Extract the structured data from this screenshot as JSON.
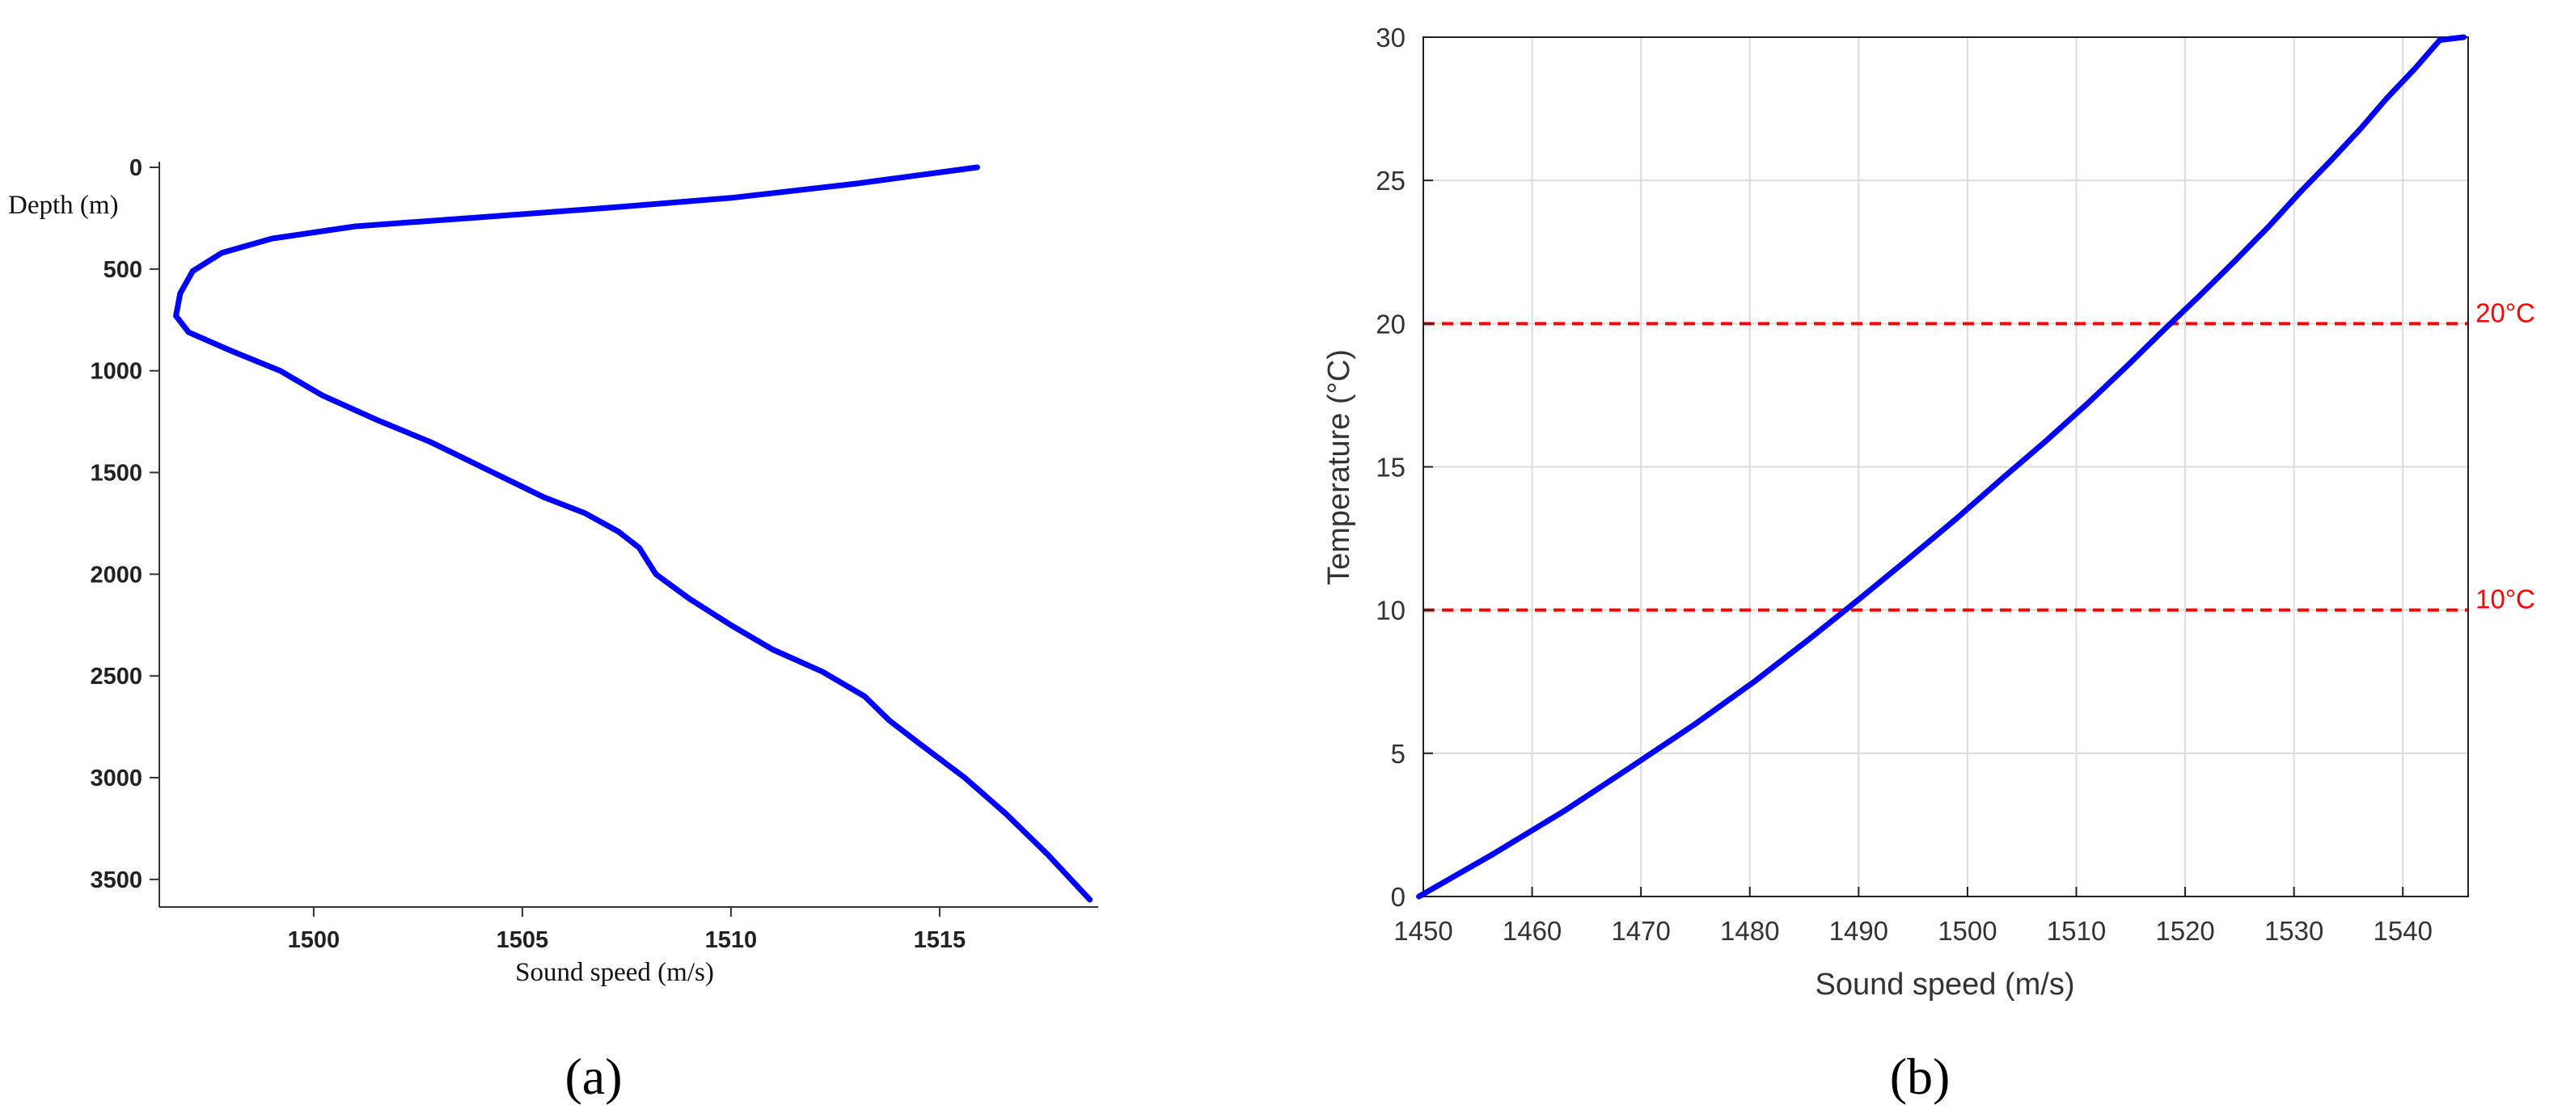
{
  "chart_data": [
    {
      "panel_label": "(a)",
      "type": "line",
      "xlabel": "Sound speed (m/s)",
      "ylabel": "Depth (m)",
      "xlim": [
        1496.3,
        1518.8
      ],
      "ylim": [
        0,
        3600
      ],
      "y_reversed": true,
      "grid": false,
      "xticks": [
        1500,
        1505,
        1510,
        1515
      ],
      "yticks": [
        0,
        500,
        1000,
        1500,
        2000,
        2500,
        3000,
        3500
      ],
      "line_color": "#0000ff",
      "series": [
        {
          "x": [
            1515.9,
            1513.0,
            1510.0,
            1507.0,
            1504.0,
            1501.0,
            1499.0,
            1497.8,
            1497.1,
            1496.8,
            1496.7,
            1497.0,
            1498.0,
            1499.2,
            1500.2,
            1501.5,
            1502.8,
            1504.0,
            1505.5,
            1506.5,
            1507.3,
            1507.8,
            1508.2,
            1509.0,
            1510.0,
            1511.0,
            1512.2,
            1513.2,
            1513.8,
            1514.5,
            1515.6,
            1516.6,
            1517.6,
            1518.6
          ],
          "y": [
            0,
            80,
            150,
            200,
            245,
            290,
            350,
            420,
            510,
            620,
            730,
            810,
            900,
            1000,
            1120,
            1240,
            1350,
            1470,
            1620,
            1700,
            1790,
            1870,
            2000,
            2120,
            2250,
            2370,
            2480,
            2600,
            2720,
            2830,
            3000,
            3180,
            3380,
            3600
          ]
        }
      ]
    },
    {
      "panel_label": "(b)",
      "type": "line",
      "xlabel": "Sound speed (m/s)",
      "ylabel": "Temperature (°C)",
      "xlim": [
        1450,
        1546
      ],
      "ylim": [
        0,
        30
      ],
      "grid": true,
      "xticks": [
        1450,
        1460,
        1470,
        1480,
        1490,
        1500,
        1510,
        1520,
        1530,
        1540
      ],
      "yticks": [
        0,
        5,
        10,
        15,
        20,
        25,
        30
      ],
      "line_color": "#0000ff",
      "series": [
        {
          "x": [
            1449.6,
            1456.5,
            1463.0,
            1469.0,
            1474.9,
            1480.4,
            1485.5,
            1490.1,
            1494.6,
            1499.0,
            1503.2,
            1507.2,
            1511.0,
            1514.6,
            1518.1,
            1521.4,
            1524.6,
            1527.7,
            1530.6,
            1533.4,
            1536.1,
            1538.6,
            1541.1,
            1543.4,
            1545.6
          ],
          "y": [
            0,
            1.5,
            3.0,
            4.5,
            6.0,
            7.5,
            9.0,
            10.4,
            11.8,
            13.2,
            14.6,
            15.9,
            17.2,
            18.5,
            19.8,
            21.0,
            22.2,
            23.4,
            24.6,
            25.7,
            26.8,
            27.9,
            28.9,
            29.9,
            30.0
          ]
        }
      ],
      "reference_lines": [
        {
          "label": "20°C",
          "y": 20,
          "color": "#ff0000",
          "style": "dashed"
        },
        {
          "label": "10°C",
          "y": 10,
          "color": "#ff0000",
          "style": "dashed"
        }
      ]
    }
  ]
}
